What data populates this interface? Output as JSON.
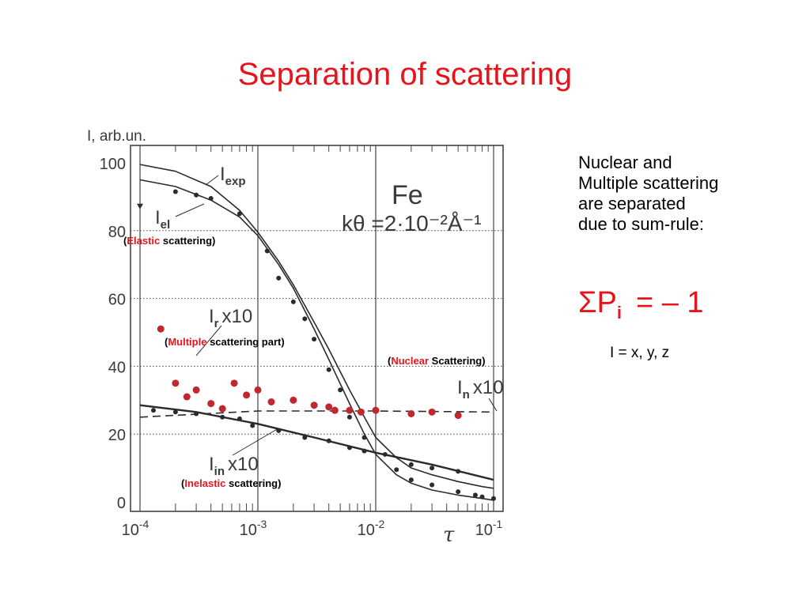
{
  "slide": {
    "title": "Separation of scattering",
    "side_text": [
      "Nuclear and",
      "Multiple scattering",
      "are separated",
      "due to sum-rule:"
    ],
    "formula": {
      "sigma_p": "ΣP",
      "sub": "i",
      "rhs": "= – 1"
    },
    "index_note": "I = x, y, z",
    "annotations": {
      "elastic": {
        "open": "(",
        "key": "Elastic",
        "rest": " scattering",
        "close": ")"
      },
      "multiple": {
        "open": "(",
        "key": "Multiple",
        "rest": " scattering part",
        "close": ")"
      },
      "nuclear": {
        "open": "(",
        "key": "Nuclear",
        "rest": " Scattering",
        "close": ")"
      },
      "inelastic": {
        "open": "(",
        "key": "Inelastic",
        "rest": " scattering",
        "close": ")"
      }
    },
    "colors": {
      "title": "#e8141b",
      "accent": "#e8141b",
      "marker_red": "#c0282d",
      "ink": "#3a3a3a",
      "grid": "#444444"
    }
  },
  "chart_data": {
    "type": "scatter",
    "ylabel": "I, arb.un.",
    "xlabel": "τ",
    "x_scale": "log",
    "xlim": [
      0.0001,
      0.1
    ],
    "ylim": [
      0,
      100
    ],
    "x_ticks": [
      {
        "value": 0.0001,
        "base": "10",
        "exp": "-4"
      },
      {
        "value": 0.001,
        "base": "10",
        "exp": "-3"
      },
      {
        "value": 0.01,
        "base": "10",
        "exp": "-2"
      },
      {
        "value": 0.1,
        "base": "10",
        "exp": "-1"
      }
    ],
    "y_ticks": [
      0,
      20,
      40,
      60,
      80,
      100
    ],
    "grid": true,
    "inset": {
      "line1": "Fe",
      "line2": "kθ =2·10⁻²Å⁻¹"
    },
    "curve_labels": {
      "exp": {
        "main": "I",
        "sub": "exp",
        "suffix": ""
      },
      "el": {
        "main": "I",
        "sub": "el",
        "suffix": ""
      },
      "r": {
        "main": "I",
        "sub": "r",
        "suffix": "x10"
      },
      "n": {
        "main": "I",
        "sub": "n",
        "suffix": "x10"
      },
      "in": {
        "main": "I",
        "sub": "in",
        "suffix": "x10"
      }
    },
    "series": [
      {
        "id": "exp",
        "kind": "line",
        "x": [
          0.0001,
          0.0002,
          0.0004,
          0.0007,
          0.001,
          0.0015,
          0.002,
          0.003,
          0.004,
          0.006,
          0.008,
          0.01,
          0.015,
          0.02,
          0.03,
          0.05,
          0.08,
          0.1
        ],
        "y": [
          99.5,
          97.5,
          93,
          86,
          79.5,
          71,
          64,
          53,
          45,
          33,
          25,
          19,
          13,
          10,
          8,
          6,
          4.5,
          4
        ]
      },
      {
        "id": "el",
        "kind": "line",
        "x": [
          0.0001,
          0.0002,
          0.0004,
          0.0007,
          0.001,
          0.0015,
          0.002,
          0.003,
          0.004,
          0.006,
          0.008,
          0.01,
          0.015,
          0.02,
          0.03,
          0.05,
          0.08,
          0.1
        ],
        "y": [
          95,
          93,
          89,
          84,
          78.5,
          70,
          63,
          51,
          42,
          29,
          20,
          14,
          8,
          5.5,
          3.5,
          2,
          1,
          0.5
        ]
      },
      {
        "id": "el_points",
        "kind": "points",
        "x": [
          0.0002,
          0.0003,
          0.0004,
          0.0007,
          0.0012,
          0.0015,
          0.002,
          0.0025,
          0.003,
          0.004,
          0.005,
          0.006,
          0.008,
          0.015,
          0.02,
          0.03,
          0.05,
          0.07,
          0.08,
          0.1
        ],
        "y": [
          91.5,
          90.5,
          89.5,
          85,
          74,
          66,
          59,
          54,
          48,
          39,
          33,
          25,
          19,
          9.5,
          6.5,
          5,
          3,
          2,
          1.5,
          1
        ]
      },
      {
        "id": "r_points",
        "kind": "points",
        "color": "red",
        "x": [
          0.00015,
          0.0002,
          0.00025,
          0.0003,
          0.0004,
          0.0005,
          0.00063,
          0.0008,
          0.001,
          0.0013,
          0.002,
          0.003,
          0.004,
          0.0045,
          0.006,
          0.0075,
          0.01,
          0.02,
          0.03,
          0.05
        ],
        "y": [
          51,
          35,
          31,
          33,
          29,
          27.5,
          35,
          31.5,
          33,
          29.5,
          30,
          28.5,
          28,
          27,
          27,
          26.5,
          27,
          26,
          26.5,
          25.5
        ]
      },
      {
        "id": "n",
        "kind": "dashed",
        "x": [
          0.0001,
          0.001,
          0.01,
          0.1
        ],
        "y": [
          25,
          26.8,
          26.8,
          26.5
        ]
      },
      {
        "id": "in",
        "kind": "line",
        "x": [
          0.0001,
          0.0003,
          0.001,
          0.003,
          0.01,
          0.03,
          0.1
        ],
        "y": [
          28.5,
          26.5,
          23,
          19,
          14.5,
          11,
          6.5
        ]
      },
      {
        "id": "in_points",
        "kind": "points",
        "x": [
          0.00013,
          0.0002,
          0.0003,
          0.0005,
          0.0007,
          0.0009,
          0.0015,
          0.0025,
          0.004,
          0.006,
          0.008,
          0.012,
          0.02,
          0.03,
          0.05
        ],
        "y": [
          27,
          26.5,
          26,
          25,
          24.5,
          22.5,
          21,
          19,
          18,
          16,
          15,
          14,
          11,
          10,
          9
        ]
      }
    ]
  }
}
